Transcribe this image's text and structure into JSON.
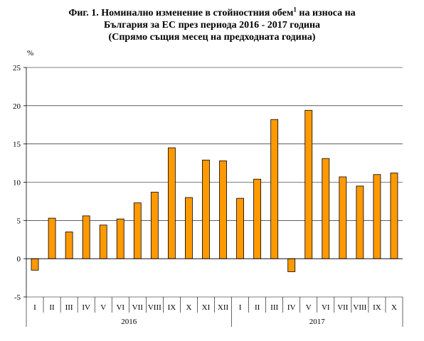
{
  "chart_data": {
    "type": "bar",
    "title_line1": "Фиг. 1. Номинално изменение в стойностния обем",
    "title_sup": "1",
    "title_line1_end": " на износа на",
    "title_line2": "България за ЕС през периода 2016 - 2017 година",
    "title_line3": "(Спрямо същия месец на предходната година)",
    "ylabel": "%",
    "ylim": [
      -5,
      25
    ],
    "yticks": [
      "25",
      "20",
      "15",
      "10",
      "5",
      "0",
      "-5"
    ],
    "categories": [
      "I",
      "II",
      "III",
      "IV",
      "V",
      "VI",
      "VII",
      "VIII",
      "IX",
      "X",
      "XI",
      "XII",
      "I",
      "II",
      "III",
      "IV",
      "V",
      "VI",
      "VII",
      "VIII",
      "IX",
      "X"
    ],
    "values": [
      -1.5,
      5.3,
      3.5,
      5.6,
      4.4,
      5.2,
      7.3,
      8.7,
      14.5,
      8.0,
      12.9,
      12.8,
      7.9,
      10.4,
      18.2,
      -1.7,
      19.4,
      13.1,
      10.7,
      9.5,
      11.0,
      11.2
    ],
    "groups": [
      {
        "label": "2016",
        "count": 12
      },
      {
        "label": "2017",
        "count": 10
      }
    ],
    "bar_color": "#FF9900",
    "grid": true,
    "legend": "none"
  }
}
